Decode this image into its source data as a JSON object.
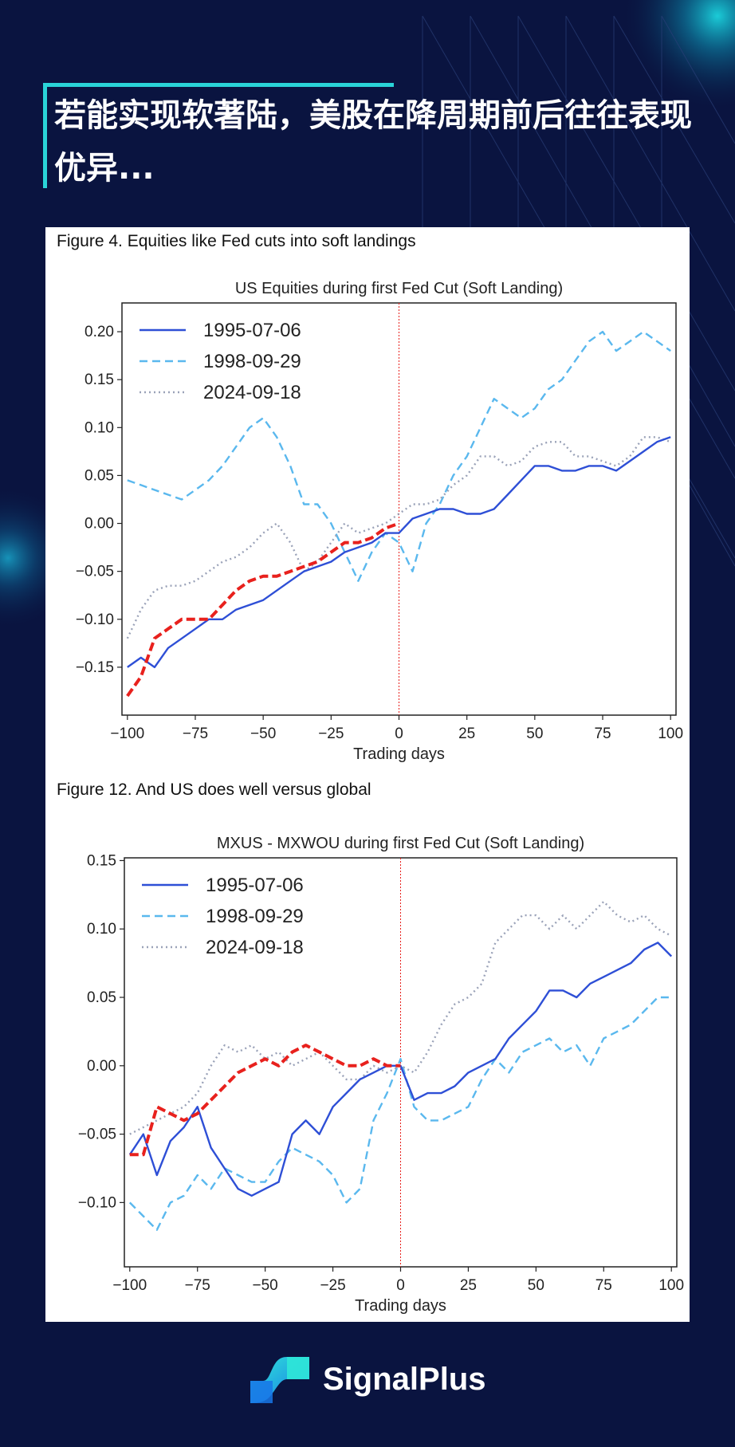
{
  "headline": "若能实现软著陆，美股在降周期前后往往表现优异...",
  "brand": {
    "name": "SignalPlus"
  },
  "colors": {
    "background": "#0a1440",
    "accent": "#2ad4d8",
    "solid": "#2e4fd6",
    "dashed": "#5ab8ee",
    "dotted": "#9aa2b8",
    "highlight": "#e8211d"
  },
  "figures": [
    {
      "caption": "Figure 4. Equities like Fed cuts into soft landings"
    },
    {
      "caption": "Figure 12. And US does well versus global"
    }
  ],
  "chart_data": [
    {
      "type": "line",
      "title": "US Equities during first Fed Cut (Soft Landing)",
      "xlabel": "Trading days",
      "ylabel": "",
      "xlim": [
        -102,
        102
      ],
      "ylim": [
        -0.2,
        0.23
      ],
      "xticks": [
        "−100",
        "−75",
        "−50",
        "−25",
        "0",
        "25",
        "50",
        "75",
        "100"
      ],
      "yticks": [
        "0.20",
        "0.15",
        "0.10",
        "0.05",
        "0.00",
        "−0.05",
        "−0.10",
        "−0.15"
      ],
      "ytick_values": [
        0.2,
        0.15,
        0.1,
        0.05,
        0.0,
        -0.05,
        -0.1,
        -0.15
      ],
      "vline_x": 0,
      "legend": [
        "1995-07-06",
        "1998-09-29",
        "2024-09-18"
      ],
      "legend_position": "top-left",
      "series": [
        {
          "name": "1995-07-06",
          "style": "solid",
          "x": [
            -100,
            -95,
            -90,
            -85,
            -80,
            -75,
            -70,
            -65,
            -60,
            -55,
            -50,
            -45,
            -40,
            -35,
            -30,
            -25,
            -20,
            -15,
            -10,
            -5,
            0,
            5,
            10,
            15,
            20,
            25,
            30,
            35,
            40,
            45,
            50,
            55,
            60,
            65,
            70,
            75,
            80,
            85,
            90,
            95,
            100
          ],
          "values": [
            -0.15,
            -0.14,
            -0.15,
            -0.13,
            -0.12,
            -0.11,
            -0.1,
            -0.1,
            -0.09,
            -0.085,
            -0.08,
            -0.07,
            -0.06,
            -0.05,
            -0.045,
            -0.04,
            -0.03,
            -0.025,
            -0.02,
            -0.01,
            -0.01,
            0.005,
            0.01,
            0.015,
            0.015,
            0.01,
            0.01,
            0.015,
            0.03,
            0.045,
            0.06,
            0.06,
            0.055,
            0.055,
            0.06,
            0.06,
            0.055,
            0.065,
            0.075,
            0.085,
            0.09
          ]
        },
        {
          "name": "1998-09-29",
          "style": "dashed",
          "x": [
            -100,
            -95,
            -90,
            -85,
            -80,
            -75,
            -70,
            -65,
            -60,
            -55,
            -50,
            -45,
            -40,
            -35,
            -30,
            -25,
            -20,
            -15,
            -10,
            -5,
            0,
            5,
            10,
            15,
            20,
            25,
            30,
            35,
            40,
            45,
            50,
            55,
            60,
            65,
            70,
            75,
            80,
            85,
            90,
            95,
            100
          ],
          "values": [
            0.045,
            0.04,
            0.035,
            0.03,
            0.025,
            0.035,
            0.045,
            0.06,
            0.08,
            0.1,
            0.11,
            0.09,
            0.06,
            0.02,
            0.02,
            0.0,
            -0.03,
            -0.06,
            -0.03,
            -0.01,
            -0.02,
            -0.05,
            0.0,
            0.02,
            0.05,
            0.07,
            0.1,
            0.13,
            0.12,
            0.11,
            0.12,
            0.14,
            0.15,
            0.17,
            0.19,
            0.2,
            0.18,
            0.19,
            0.2,
            0.19,
            0.18
          ]
        },
        {
          "name": "2024-09-18",
          "style": "dotted",
          "x": [
            -100,
            -95,
            -90,
            -85,
            -80,
            -75,
            -70,
            -65,
            -60,
            -55,
            -50,
            -45,
            -40,
            -35,
            -30,
            -25,
            -20,
            -15,
            -10,
            -5,
            0,
            5,
            10,
            15,
            20,
            25,
            30,
            35,
            40,
            45,
            50,
            55,
            60,
            65,
            70,
            75,
            80,
            85,
            90,
            95,
            100
          ],
          "values": [
            -0.12,
            -0.09,
            -0.07,
            -0.065,
            -0.065,
            -0.06,
            -0.05,
            -0.04,
            -0.035,
            -0.025,
            -0.01,
            0.0,
            -0.02,
            -0.05,
            -0.04,
            -0.02,
            0.0,
            -0.01,
            -0.005,
            0.0,
            0.01,
            0.02,
            0.02,
            0.025,
            0.04,
            0.05,
            0.07,
            0.07,
            0.06,
            0.065,
            0.08,
            0.085,
            0.085,
            0.07,
            0.07,
            0.065,
            0.06,
            0.07,
            0.09,
            0.09,
            0.085
          ]
        },
        {
          "name": "highlight",
          "style": "highlight",
          "x": [
            -100,
            -95,
            -90,
            -85,
            -80,
            -75,
            -70,
            -65,
            -60,
            -55,
            -50,
            -45,
            -40,
            -35,
            -30,
            -25,
            -20,
            -15,
            -10,
            -5,
            0
          ],
          "values": [
            -0.18,
            -0.16,
            -0.12,
            -0.11,
            -0.1,
            -0.1,
            -0.1,
            -0.085,
            -0.07,
            -0.06,
            -0.055,
            -0.055,
            -0.05,
            -0.045,
            -0.04,
            -0.03,
            -0.02,
            -0.02,
            -0.015,
            -0.005,
            0.0
          ]
        }
      ]
    },
    {
      "type": "line",
      "title": "MXUS - MXWOU during first Fed Cut (Soft Landing)",
      "xlabel": "Trading days",
      "ylabel": "",
      "xlim": [
        -102,
        102
      ],
      "ylim": [
        -0.147,
        0.152
      ],
      "xticks": [
        "−100",
        "−75",
        "−50",
        "−25",
        "0",
        "25",
        "50",
        "75",
        "100"
      ],
      "yticks": [
        "0.15",
        "0.10",
        "0.05",
        "0.00",
        "−0.05",
        "−0.10"
      ],
      "ytick_values": [
        0.15,
        0.1,
        0.05,
        0.0,
        -0.05,
        -0.1
      ],
      "vline_x": 0,
      "legend": [
        "1995-07-06",
        "1998-09-29",
        "2024-09-18"
      ],
      "legend_position": "top-left",
      "series": [
        {
          "name": "1995-07-06",
          "style": "solid",
          "x": [
            -100,
            -95,
            -90,
            -85,
            -80,
            -75,
            -70,
            -65,
            -60,
            -55,
            -50,
            -45,
            -40,
            -35,
            -30,
            -25,
            -20,
            -15,
            -10,
            -5,
            0,
            5,
            10,
            15,
            20,
            25,
            30,
            35,
            40,
            45,
            50,
            55,
            60,
            65,
            70,
            75,
            80,
            85,
            90,
            95,
            100
          ],
          "values": [
            -0.065,
            -0.05,
            -0.08,
            -0.055,
            -0.045,
            -0.03,
            -0.06,
            -0.075,
            -0.09,
            -0.095,
            -0.09,
            -0.085,
            -0.05,
            -0.04,
            -0.05,
            -0.03,
            -0.02,
            -0.01,
            -0.005,
            0.0,
            0.0,
            -0.025,
            -0.02,
            -0.02,
            -0.015,
            -0.005,
            0.0,
            0.005,
            0.02,
            0.03,
            0.04,
            0.055,
            0.055,
            0.05,
            0.06,
            0.065,
            0.07,
            0.075,
            0.085,
            0.09,
            0.08
          ]
        },
        {
          "name": "1998-09-29",
          "style": "dashed",
          "x": [
            -100,
            -95,
            -90,
            -85,
            -80,
            -75,
            -70,
            -65,
            -60,
            -55,
            -50,
            -45,
            -40,
            -35,
            -30,
            -25,
            -20,
            -15,
            -10,
            -5,
            0,
            5,
            10,
            15,
            20,
            25,
            30,
            35,
            40,
            45,
            50,
            55,
            60,
            65,
            70,
            75,
            80,
            85,
            90,
            95,
            100
          ],
          "values": [
            -0.1,
            -0.11,
            -0.12,
            -0.1,
            -0.095,
            -0.08,
            -0.09,
            -0.075,
            -0.08,
            -0.085,
            -0.085,
            -0.07,
            -0.06,
            -0.065,
            -0.07,
            -0.08,
            -0.1,
            -0.09,
            -0.04,
            -0.02,
            0.005,
            -0.03,
            -0.04,
            -0.04,
            -0.035,
            -0.03,
            -0.01,
            0.005,
            -0.005,
            0.01,
            0.015,
            0.02,
            0.01,
            0.015,
            0.0,
            0.02,
            0.025,
            0.03,
            0.04,
            0.05,
            0.05
          ]
        },
        {
          "name": "2024-09-18",
          "style": "dotted",
          "x": [
            -100,
            -95,
            -90,
            -85,
            -80,
            -75,
            -70,
            -65,
            -60,
            -55,
            -50,
            -45,
            -40,
            -35,
            -30,
            -25,
            -20,
            -15,
            -10,
            -5,
            0,
            5,
            10,
            15,
            20,
            25,
            30,
            35,
            40,
            45,
            50,
            55,
            60,
            65,
            70,
            75,
            80,
            85,
            90,
            95,
            100
          ],
          "values": [
            -0.05,
            -0.045,
            -0.04,
            -0.035,
            -0.03,
            -0.02,
            0.0,
            0.015,
            0.01,
            0.015,
            0.005,
            0.01,
            0.0,
            0.005,
            0.01,
            0.0,
            -0.01,
            -0.01,
            0.0,
            -0.005,
            0.0,
            -0.005,
            0.01,
            0.03,
            0.045,
            0.05,
            0.06,
            0.09,
            0.1,
            0.11,
            0.11,
            0.1,
            0.11,
            0.1,
            0.11,
            0.12,
            0.11,
            0.105,
            0.11,
            0.1,
            0.095
          ]
        },
        {
          "name": "highlight",
          "style": "highlight",
          "x": [
            -100,
            -95,
            -90,
            -85,
            -80,
            -75,
            -70,
            -65,
            -60,
            -55,
            -50,
            -45,
            -40,
            -35,
            -30,
            -25,
            -20,
            -15,
            -10,
            -5,
            0
          ],
          "values": [
            -0.065,
            -0.065,
            -0.03,
            -0.035,
            -0.04,
            -0.035,
            -0.025,
            -0.015,
            -0.005,
            0.0,
            0.005,
            0.0,
            0.01,
            0.015,
            0.01,
            0.005,
            0.0,
            0.0,
            0.005,
            0.0,
            0.0
          ]
        }
      ]
    }
  ]
}
